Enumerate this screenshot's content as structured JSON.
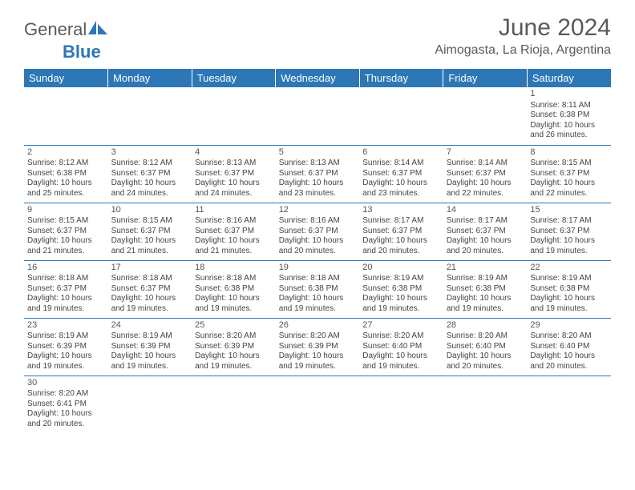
{
  "brand": {
    "general": "General",
    "blue": "Blue"
  },
  "title": "June 2024",
  "location": "Aimogasta, La Rioja, Argentina",
  "header_bg": "#2d77b6",
  "weekdays": [
    "Sunday",
    "Monday",
    "Tuesday",
    "Wednesday",
    "Thursday",
    "Friday",
    "Saturday"
  ],
  "weeks": [
    [
      null,
      null,
      null,
      null,
      null,
      null,
      {
        "d": "1",
        "sr": "8:11 AM",
        "ss": "6:38 PM",
        "dl1": "10 hours",
        "dl2": "and 26 minutes."
      }
    ],
    [
      {
        "d": "2",
        "sr": "8:12 AM",
        "ss": "6:38 PM",
        "dl1": "10 hours",
        "dl2": "and 25 minutes."
      },
      {
        "d": "3",
        "sr": "8:12 AM",
        "ss": "6:37 PM",
        "dl1": "10 hours",
        "dl2": "and 24 minutes."
      },
      {
        "d": "4",
        "sr": "8:13 AM",
        "ss": "6:37 PM",
        "dl1": "10 hours",
        "dl2": "and 24 minutes."
      },
      {
        "d": "5",
        "sr": "8:13 AM",
        "ss": "6:37 PM",
        "dl1": "10 hours",
        "dl2": "and 23 minutes."
      },
      {
        "d": "6",
        "sr": "8:14 AM",
        "ss": "6:37 PM",
        "dl1": "10 hours",
        "dl2": "and 23 minutes."
      },
      {
        "d": "7",
        "sr": "8:14 AM",
        "ss": "6:37 PM",
        "dl1": "10 hours",
        "dl2": "and 22 minutes."
      },
      {
        "d": "8",
        "sr": "8:15 AM",
        "ss": "6:37 PM",
        "dl1": "10 hours",
        "dl2": "and 22 minutes."
      }
    ],
    [
      {
        "d": "9",
        "sr": "8:15 AM",
        "ss": "6:37 PM",
        "dl1": "10 hours",
        "dl2": "and 21 minutes."
      },
      {
        "d": "10",
        "sr": "8:15 AM",
        "ss": "6:37 PM",
        "dl1": "10 hours",
        "dl2": "and 21 minutes."
      },
      {
        "d": "11",
        "sr": "8:16 AM",
        "ss": "6:37 PM",
        "dl1": "10 hours",
        "dl2": "and 21 minutes."
      },
      {
        "d": "12",
        "sr": "8:16 AM",
        "ss": "6:37 PM",
        "dl1": "10 hours",
        "dl2": "and 20 minutes."
      },
      {
        "d": "13",
        "sr": "8:17 AM",
        "ss": "6:37 PM",
        "dl1": "10 hours",
        "dl2": "and 20 minutes."
      },
      {
        "d": "14",
        "sr": "8:17 AM",
        "ss": "6:37 PM",
        "dl1": "10 hours",
        "dl2": "and 20 minutes."
      },
      {
        "d": "15",
        "sr": "8:17 AM",
        "ss": "6:37 PM",
        "dl1": "10 hours",
        "dl2": "and 19 minutes."
      }
    ],
    [
      {
        "d": "16",
        "sr": "8:18 AM",
        "ss": "6:37 PM",
        "dl1": "10 hours",
        "dl2": "and 19 minutes."
      },
      {
        "d": "17",
        "sr": "8:18 AM",
        "ss": "6:37 PM",
        "dl1": "10 hours",
        "dl2": "and 19 minutes."
      },
      {
        "d": "18",
        "sr": "8:18 AM",
        "ss": "6:38 PM",
        "dl1": "10 hours",
        "dl2": "and 19 minutes."
      },
      {
        "d": "19",
        "sr": "8:18 AM",
        "ss": "6:38 PM",
        "dl1": "10 hours",
        "dl2": "and 19 minutes."
      },
      {
        "d": "20",
        "sr": "8:19 AM",
        "ss": "6:38 PM",
        "dl1": "10 hours",
        "dl2": "and 19 minutes."
      },
      {
        "d": "21",
        "sr": "8:19 AM",
        "ss": "6:38 PM",
        "dl1": "10 hours",
        "dl2": "and 19 minutes."
      },
      {
        "d": "22",
        "sr": "8:19 AM",
        "ss": "6:38 PM",
        "dl1": "10 hours",
        "dl2": "and 19 minutes."
      }
    ],
    [
      {
        "d": "23",
        "sr": "8:19 AM",
        "ss": "6:39 PM",
        "dl1": "10 hours",
        "dl2": "and 19 minutes."
      },
      {
        "d": "24",
        "sr": "8:19 AM",
        "ss": "6:39 PM",
        "dl1": "10 hours",
        "dl2": "and 19 minutes."
      },
      {
        "d": "25",
        "sr": "8:20 AM",
        "ss": "6:39 PM",
        "dl1": "10 hours",
        "dl2": "and 19 minutes."
      },
      {
        "d": "26",
        "sr": "8:20 AM",
        "ss": "6:39 PM",
        "dl1": "10 hours",
        "dl2": "and 19 minutes."
      },
      {
        "d": "27",
        "sr": "8:20 AM",
        "ss": "6:40 PM",
        "dl1": "10 hours",
        "dl2": "and 19 minutes."
      },
      {
        "d": "28",
        "sr": "8:20 AM",
        "ss": "6:40 PM",
        "dl1": "10 hours",
        "dl2": "and 20 minutes."
      },
      {
        "d": "29",
        "sr": "8:20 AM",
        "ss": "6:40 PM",
        "dl1": "10 hours",
        "dl2": "and 20 minutes."
      }
    ],
    [
      {
        "d": "30",
        "sr": "8:20 AM",
        "ss": "6:41 PM",
        "dl1": "10 hours",
        "dl2": "and 20 minutes."
      },
      null,
      null,
      null,
      null,
      null,
      null
    ]
  ],
  "labels": {
    "sunrise": "Sunrise: ",
    "sunset": "Sunset: ",
    "daylight": "Daylight: "
  }
}
